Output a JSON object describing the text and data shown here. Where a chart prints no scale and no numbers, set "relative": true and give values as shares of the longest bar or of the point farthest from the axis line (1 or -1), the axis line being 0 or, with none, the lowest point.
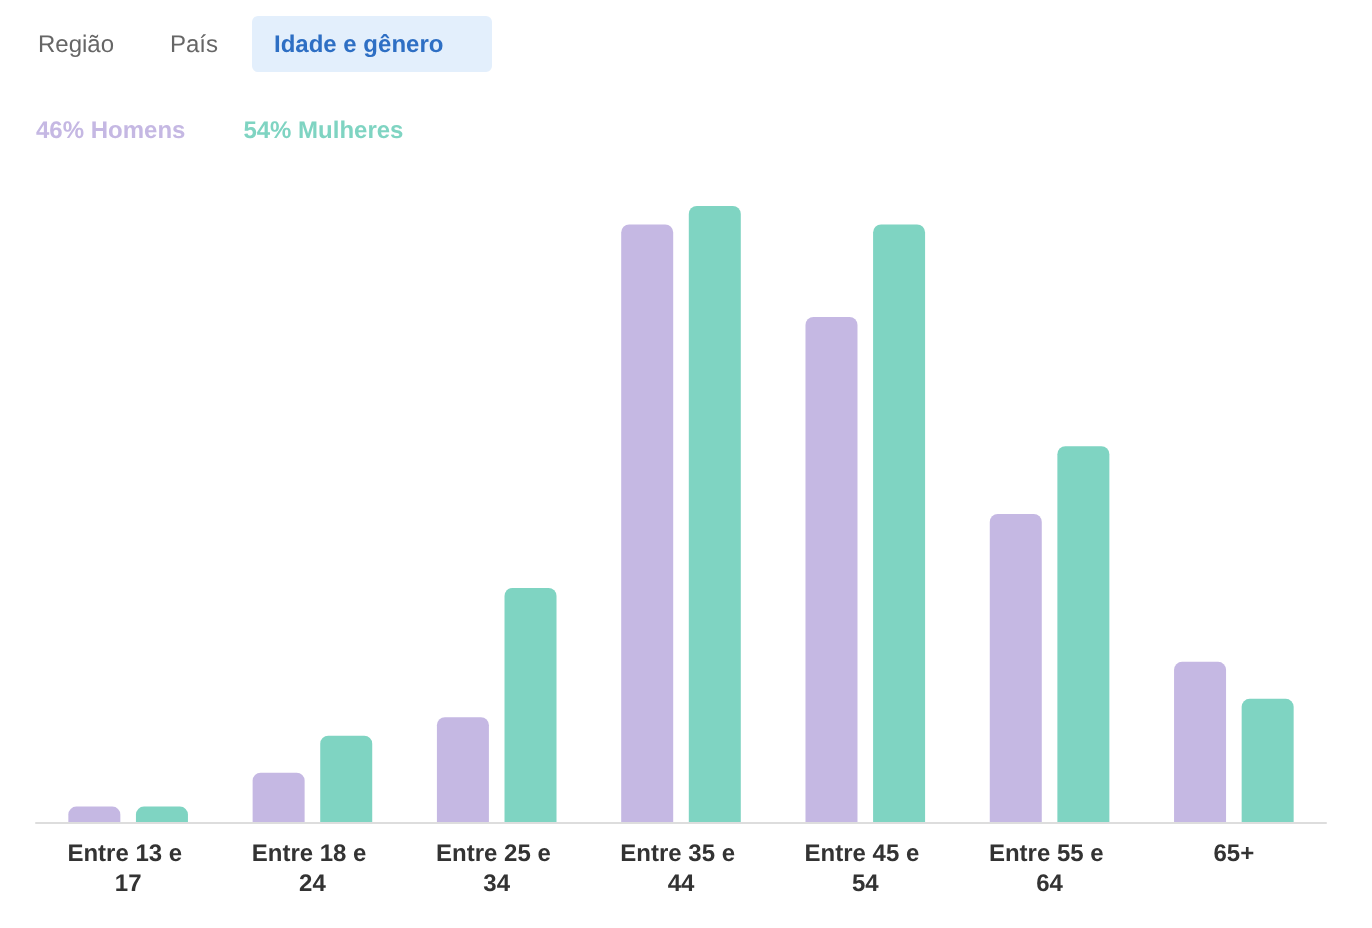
{
  "chart_data": {
    "type": "bar",
    "relative": true,
    "categories": [
      "Entre 13 e 17",
      "Entre 18 e 24",
      "Entre 25 e 34",
      "Entre 35 e 44",
      "Entre 45 e 54",
      "Entre 55 e 64",
      "65+"
    ],
    "series": [
      {
        "name": "46% Homens",
        "color": "#c5b8e3",
        "values": [
          0.025,
          0.08,
          0.17,
          0.97,
          0.82,
          0.5,
          0.26
        ]
      },
      {
        "name": "54% Mulheres",
        "color": "#7fd4c2",
        "values": [
          0.025,
          0.14,
          0.38,
          1,
          0.97,
          0.61,
          0.2
        ]
      }
    ],
    "legend": "top left",
    "annotations": [
      "Região",
      "País",
      "Idade e gênero"
    ]
  }
}
